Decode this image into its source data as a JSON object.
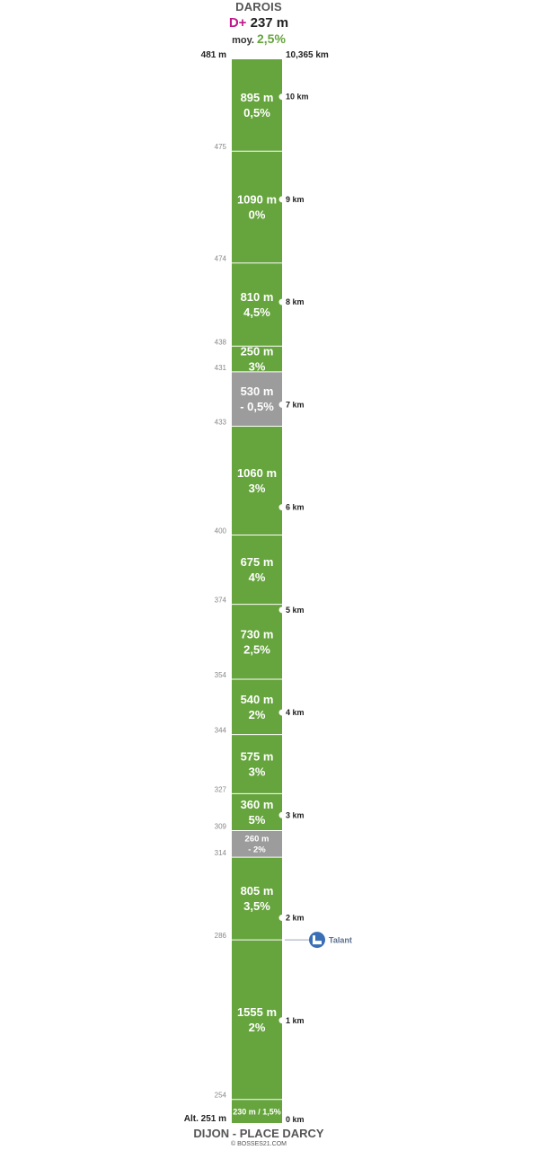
{
  "header": {
    "title": "DAROIS",
    "dplus_label": "D+",
    "dplus_value": "237 m",
    "avg_label": "moy.",
    "avg_value": "2,5%"
  },
  "top_altitude": "481 m",
  "total_distance": "10,365 km",
  "start_altitude": "Alt. 251 m",
  "start_name": "DIJON - PLACE DARCY",
  "credit": "© BOSSES21.COM",
  "colors": {
    "climb": "#66a43d",
    "descent": "#9c9c9c",
    "poi": "#3a6fb5"
  },
  "chart_data": {
    "type": "table",
    "unit": "m",
    "total_length_km": 10.365,
    "segments": [
      {
        "dist": "230 m / 1,5%",
        "length_m": 230,
        "type": "climb",
        "single_line": true
      },
      {
        "dist": "1555 m",
        "grade": "2%",
        "length_m": 1555,
        "type": "climb"
      },
      {
        "dist": "805 m",
        "grade": "3,5%",
        "length_m": 805,
        "type": "climb"
      },
      {
        "dist": "260 m",
        "grade": "- 2%",
        "length_m": 260,
        "type": "descent",
        "small": true
      },
      {
        "dist": "360 m",
        "grade": "5%",
        "length_m": 360,
        "type": "climb"
      },
      {
        "dist": "575 m",
        "grade": "3%",
        "length_m": 575,
        "type": "climb"
      },
      {
        "dist": "540 m",
        "grade": "2%",
        "length_m": 540,
        "type": "climb"
      },
      {
        "dist": "730 m",
        "grade": "2,5%",
        "length_m": 730,
        "type": "climb"
      },
      {
        "dist": "675 m",
        "grade": "4%",
        "length_m": 675,
        "type": "climb"
      },
      {
        "dist": "1060 m",
        "grade": "3%",
        "length_m": 1060,
        "type": "climb"
      },
      {
        "dist": "530 m",
        "grade": "- 0,5%",
        "length_m": 530,
        "type": "descent"
      },
      {
        "dist": "250 m",
        "grade": "3%",
        "length_m": 250,
        "type": "climb"
      },
      {
        "dist": "810 m",
        "grade": "4,5%",
        "length_m": 810,
        "type": "climb"
      },
      {
        "dist": "1090 m",
        "grade": "0%",
        "length_m": 1090,
        "type": "climb"
      },
      {
        "dist": "895 m",
        "grade": "0,5%",
        "length_m": 895,
        "type": "climb"
      }
    ],
    "boundary_altitudes": [
      "254",
      "286",
      "314",
      "309",
      "327",
      "344",
      "354",
      "374",
      "400",
      "433",
      "431",
      "438",
      "474",
      "475"
    ],
    "km_marks": [
      {
        "km": 0,
        "label": "0 km"
      },
      {
        "km": 1,
        "label": "1 km"
      },
      {
        "km": 2,
        "label": "2 km"
      },
      {
        "km": 3,
        "label": "3 km"
      },
      {
        "km": 4,
        "label": "4 km"
      },
      {
        "km": 5,
        "label": "5 km"
      },
      {
        "km": 6,
        "label": "6 km"
      },
      {
        "km": 7,
        "label": "7 km"
      },
      {
        "km": 8,
        "label": "8 km"
      },
      {
        "km": 9,
        "label": "9 km"
      },
      {
        "km": 10,
        "label": "10 km"
      }
    ],
    "poi": [
      {
        "name": "Talant",
        "km": 1.785,
        "icon": "landmark-icon"
      }
    ]
  }
}
